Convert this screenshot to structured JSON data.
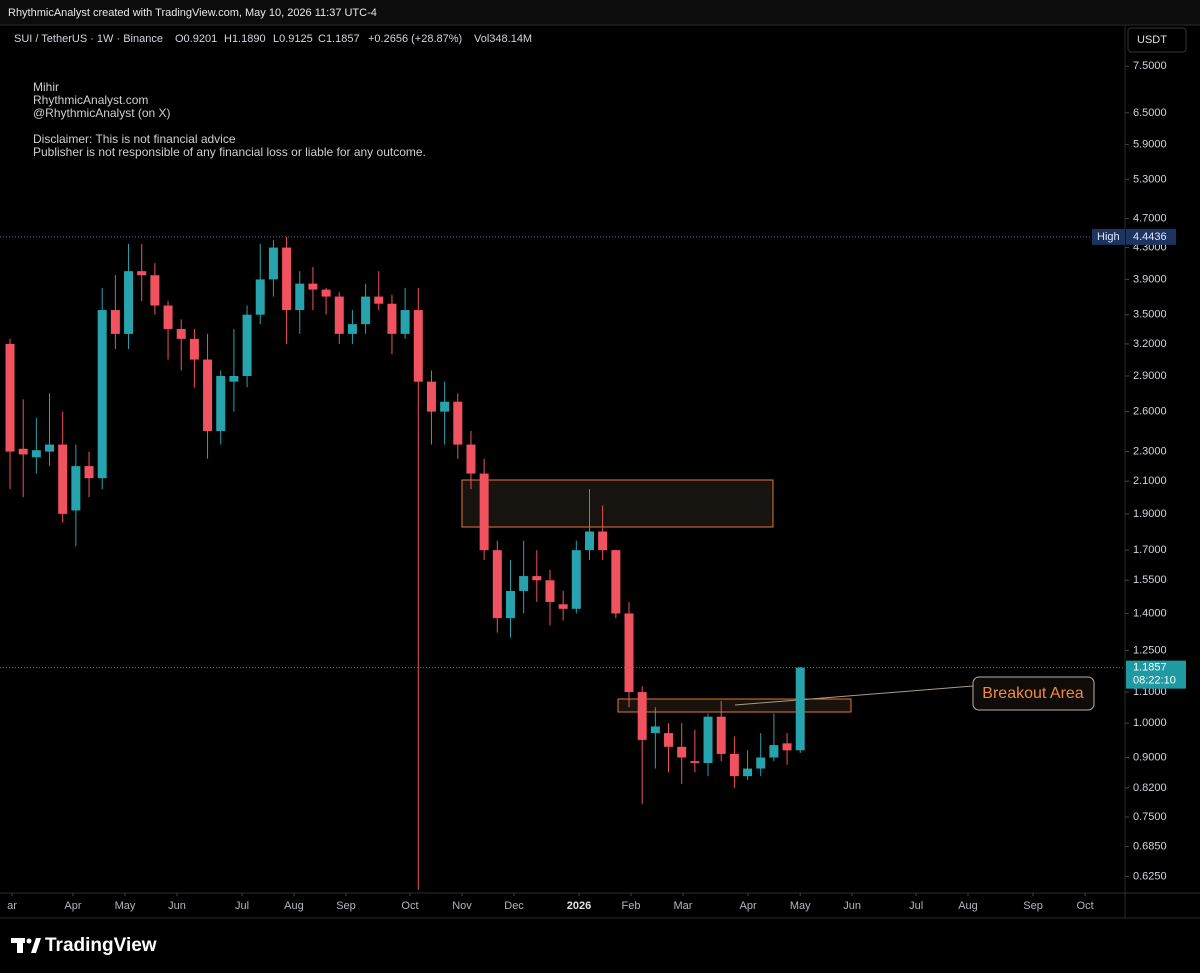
{
  "header": {
    "credit": "RhythmicAnalyst created with TradingView.com, May 10, 2026 11:37 UTC-4",
    "symbol": "SUI / TetherUS · 1W · Binance",
    "ohlc": [
      "O0.9201",
      "H1.1890",
      "L0.9125",
      "C1.1857"
    ],
    "change": "+0.2656 (+28.87%)",
    "volume": "Vol348.14M",
    "currency": "USDT"
  },
  "watermark": [
    "Mihir",
    "RhythmicAnalyst.com",
    "@RhythmicAnalyst (on X)",
    "Disclaimer: This is not financial advice",
    "Publisher is not responsible of any financial loss or liable for any outcome."
  ],
  "footer": {
    "brand": "TradingView"
  },
  "chart_data": {
    "type": "candlestick",
    "log_scale": true,
    "grid": false,
    "up_color": "#26a3ad",
    "down_color": "#f0525f",
    "open": [
      3.2,
      2.32,
      2.26,
      2.3,
      2.35,
      1.92,
      2.2,
      2.12,
      3.55,
      3.3,
      4.0,
      3.95,
      3.6,
      3.35,
      3.25,
      3.05,
      2.45,
      2.85,
      2.9,
      3.5,
      3.9,
      4.3,
      3.55,
      3.85,
      3.78,
      3.7,
      3.3,
      3.4,
      3.7,
      3.62,
      3.3,
      3.55,
      2.85,
      2.6,
      2.68,
      2.35,
      2.15,
      1.7,
      1.38,
      1.5,
      1.57,
      1.55,
      1.44,
      1.42,
      1.7,
      1.8,
      1.7,
      1.4,
      1.1,
      0.97,
      0.97,
      0.93,
      0.89,
      0.885,
      1.02,
      0.91,
      0.85,
      0.87,
      0.9,
      0.94,
      0.9201
    ],
    "high": [
      3.25,
      2.7,
      2.55,
      2.75,
      2.6,
      2.35,
      2.3,
      3.8,
      3.95,
      4.35,
      4.35,
      4.1,
      3.65,
      3.45,
      3.35,
      3.3,
      2.95,
      3.35,
      3.6,
      4.35,
      4.4,
      4.4436,
      4.0,
      4.05,
      3.8,
      3.75,
      3.55,
      3.85,
      4.0,
      3.72,
      3.8,
      3.8,
      2.95,
      2.85,
      2.75,
      2.45,
      2.25,
      1.75,
      1.65,
      1.75,
      1.7,
      1.6,
      1.5,
      1.75,
      2.05,
      1.95,
      1.7,
      1.45,
      1.12,
      1.05,
      1.0,
      1.0,
      0.98,
      1.03,
      1.07,
      0.96,
      0.92,
      0.97,
      1.03,
      0.97,
      1.189
    ],
    "low": [
      2.05,
      2.0,
      2.15,
      2.2,
      1.85,
      1.72,
      2.0,
      2.05,
      3.15,
      3.15,
      3.65,
      3.5,
      3.05,
      2.95,
      2.8,
      2.25,
      2.35,
      2.6,
      2.8,
      3.4,
      3.7,
      3.2,
      3.3,
      3.55,
      3.5,
      3.2,
      3.2,
      3.3,
      3.55,
      3.1,
      3.25,
      0.6,
      2.35,
      2.35,
      2.25,
      2.05,
      1.65,
      1.32,
      1.3,
      1.4,
      1.45,
      1.35,
      1.37,
      1.4,
      1.65,
      1.65,
      1.38,
      1.05,
      0.78,
      0.87,
      0.86,
      0.83,
      0.86,
      0.85,
      0.89,
      0.82,
      0.84,
      0.85,
      0.89,
      0.88,
      0.9125
    ],
    "close": [
      2.3,
      2.28,
      2.31,
      2.35,
      1.9,
      2.2,
      2.12,
      3.55,
      3.3,
      4.0,
      3.95,
      3.6,
      3.35,
      3.25,
      3.05,
      2.45,
      2.9,
      2.9,
      3.5,
      3.9,
      4.3,
      3.55,
      3.85,
      3.78,
      3.7,
      3.3,
      3.4,
      3.7,
      3.62,
      3.3,
      3.55,
      2.85,
      2.6,
      2.68,
      2.35,
      2.15,
      1.7,
      1.38,
      1.5,
      1.57,
      1.55,
      1.45,
      1.42,
      1.7,
      1.8,
      1.7,
      1.4,
      1.1,
      0.95,
      0.99,
      0.93,
      0.9,
      0.885,
      1.02,
      0.91,
      0.85,
      0.87,
      0.9,
      0.935,
      0.92,
      1.1857
    ],
    "xlim": [
      -0.76,
      84.66
    ],
    "xticks": [
      {
        "value": 0.15,
        "label": "ar"
      },
      {
        "value": 4.78,
        "label": "Apr"
      },
      {
        "value": 8.73,
        "label": "May"
      },
      {
        "value": 12.68,
        "label": "Jun"
      },
      {
        "value": 17.62,
        "label": "Jul"
      },
      {
        "value": 21.56,
        "label": "Aug"
      },
      {
        "value": 25.51,
        "label": "Sep"
      },
      {
        "value": 30.37,
        "label": "Oct"
      },
      {
        "value": 34.32,
        "label": "Nov"
      },
      {
        "value": 38.27,
        "label": "Dec"
      },
      {
        "value": 43.2,
        "label": "2026"
      },
      {
        "value": 47.15,
        "label": "Feb"
      },
      {
        "value": 51.1,
        "label": "Mar"
      },
      {
        "value": 56.04,
        "label": "Apr"
      },
      {
        "value": 60.0,
        "label": "May"
      },
      {
        "value": 63.94,
        "label": "Jun"
      },
      {
        "value": 68.8,
        "label": "Jul"
      },
      {
        "value": 72.74,
        "label": "Aug"
      },
      {
        "value": 77.68,
        "label": "Sep"
      },
      {
        "value": 81.63,
        "label": "Oct"
      }
    ],
    "ylim": [
      0.594,
      8.51
    ],
    "yticks": [
      {
        "value": 7.5,
        "label": "7.5000"
      },
      {
        "value": 6.5,
        "label": "6.5000"
      },
      {
        "value": 5.9,
        "label": "5.9000"
      },
      {
        "value": 5.3,
        "label": "5.3000"
      },
      {
        "value": 4.7,
        "label": "4.7000"
      },
      {
        "value": 4.3,
        "label": "4.3000"
      },
      {
        "value": 3.9,
        "label": "3.9000"
      },
      {
        "value": 3.5,
        "label": "3.5000"
      },
      {
        "value": 3.2,
        "label": "3.2000"
      },
      {
        "value": 2.9,
        "label": "2.9000"
      },
      {
        "value": 2.6,
        "label": "2.6000"
      },
      {
        "value": 2.3,
        "label": "2.3000"
      },
      {
        "value": 2.1,
        "label": "2.1000"
      },
      {
        "value": 1.9,
        "label": "1.9000"
      },
      {
        "value": 1.7,
        "label": "1.7000"
      },
      {
        "value": 1.55,
        "label": "1.5500"
      },
      {
        "value": 1.4,
        "label": "1.4000"
      },
      {
        "value": 1.25,
        "label": "1.2500"
      },
      {
        "value": 1.1,
        "label": "1.1000"
      },
      {
        "value": 1.0,
        "label": "1.0000"
      },
      {
        "value": 0.9,
        "label": "0.9000"
      },
      {
        "value": 0.82,
        "label": "0.8200"
      },
      {
        "value": 0.75,
        "label": "0.7500"
      },
      {
        "value": 0.685,
        "label": "0.6850"
      },
      {
        "value": 0.625,
        "label": "0.6250"
      }
    ],
    "high_marker": {
      "label": "High",
      "value": 4.4436
    },
    "last_price": 1.1857,
    "countdown": "08:22:10",
    "annotation": "Breakout Area"
  }
}
